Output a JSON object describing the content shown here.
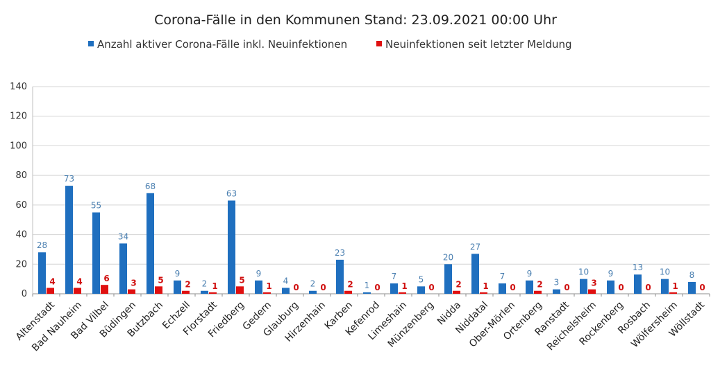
{
  "chart_data": {
    "type": "bar",
    "title": "Corona-Fälle in den Kommunen Stand: 23.09.2021 00:00 Uhr",
    "xlabel": "",
    "ylabel": "",
    "ylim": [
      0,
      140
    ],
    "yticks": [
      0,
      20,
      40,
      60,
      80,
      100,
      120,
      140
    ],
    "grid": true,
    "legend_position": "top",
    "categories": [
      "Altenstadt",
      "Bad Nauheim",
      "Bad Vilbel",
      "Büdingen",
      "Butzbach",
      "Echzell",
      "Florstadt",
      "Friedberg",
      "Gedern",
      "Glauburg",
      "Hirzenhain",
      "Karben",
      "Kefenrod",
      "Limeshain",
      "Münzenberg",
      "Nidda",
      "Niddatal",
      "Ober-Mörlen",
      "Ortenberg",
      "Ranstadt",
      "Reichelsheim",
      "Rockenberg",
      "Rosbach",
      "Wölfersheim",
      "Wöllstadt"
    ],
    "series": [
      {
        "name": "Anzahl aktiver Corona-Fälle inkl. Neuinfektionen",
        "color": "#1f6fbf",
        "values": [
          28,
          73,
          55,
          34,
          68,
          9,
          2,
          63,
          9,
          4,
          2,
          23,
          1,
          7,
          5,
          20,
          27,
          7,
          9,
          3,
          10,
          9,
          13,
          10,
          8
        ]
      },
      {
        "name": "Neuinfektionen seit letzter Meldung",
        "color": "#e01010",
        "values": [
          4,
          4,
          6,
          3,
          5,
          2,
          1,
          5,
          1,
          0,
          0,
          2,
          0,
          1,
          0,
          2,
          1,
          0,
          2,
          0,
          3,
          0,
          0,
          1,
          0
        ]
      }
    ]
  }
}
